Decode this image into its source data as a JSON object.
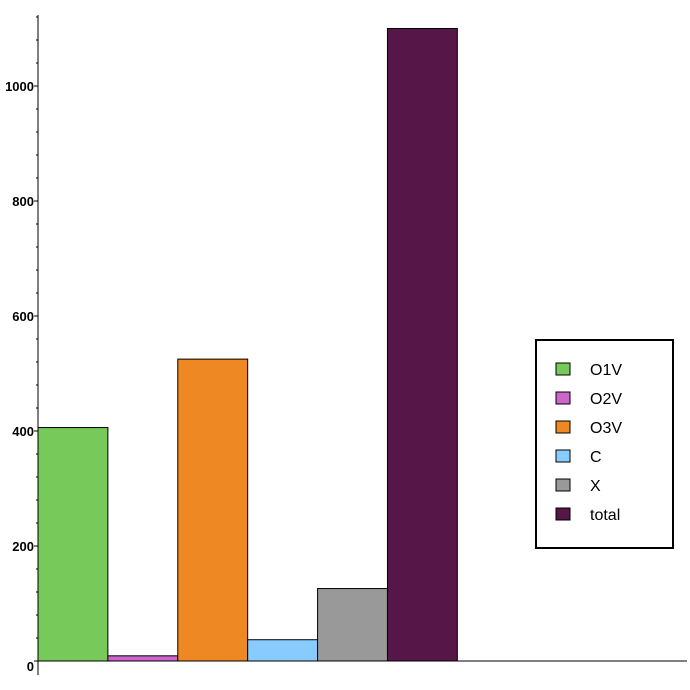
{
  "chart_data": {
    "type": "bar",
    "categories": [
      "O1V",
      "O2V",
      "O3V",
      "C",
      "X",
      "total"
    ],
    "values": [
      406,
      9,
      525,
      37,
      126,
      1100
    ],
    "colors": [
      "#77c95a",
      "#cc66cc",
      "#ee8822",
      "#88ccff",
      "#999999",
      "#561647"
    ],
    "ylim": [
      0,
      1120
    ],
    "yticks": [
      0,
      200,
      400,
      600,
      800,
      1000
    ],
    "xlim": [
      0,
      650
    ],
    "bar_width": 70,
    "legend": {
      "position": "right",
      "entries": [
        "O1V",
        "O2V",
        "O3V",
        "C",
        "X",
        "total"
      ]
    },
    "title": "",
    "xlabel": "",
    "ylabel": "",
    "grid": false
  }
}
